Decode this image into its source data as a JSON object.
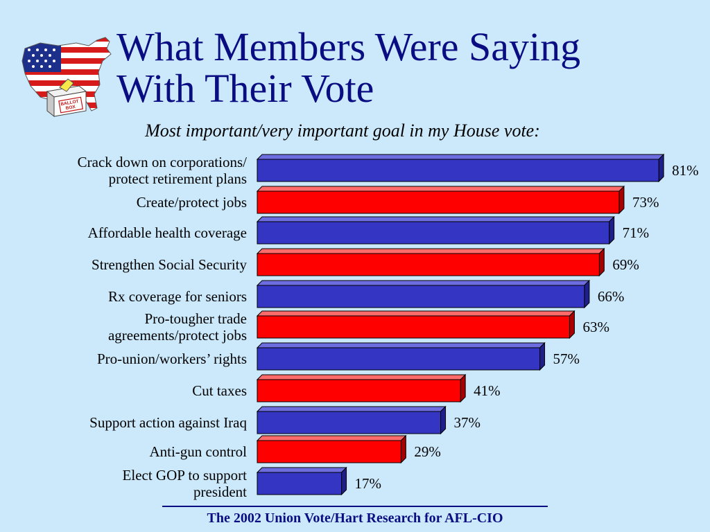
{
  "slide": {
    "title_lines": [
      "What Members Were Saying",
      "With Their Vote"
    ],
    "source": "The 2002 Union Vote/Hart Research for AFL-CIO",
    "logo_text": [
      "BALLOT",
      "BOX"
    ]
  },
  "colors": {
    "background": "#cce9fb",
    "title": "#0a0d82",
    "blue_bar": "#3535c4",
    "red_bar": "#ff0000"
  },
  "chart_data": {
    "type": "bar",
    "orientation": "horizontal",
    "title": "Most important/very important goal in my House vote:",
    "xlim": [
      0,
      81
    ],
    "grid": false,
    "legend": "none",
    "categories": [
      [
        "Crack down on corporations/",
        "protect retirement plans"
      ],
      [
        "Create/protect jobs"
      ],
      [
        "Affordable health coverage"
      ],
      [
        "Strengthen Social Security"
      ],
      [
        "Rx coverage for seniors"
      ],
      [
        "Pro-tougher trade",
        "agreements/protect jobs"
      ],
      [
        "Pro-union/workers’ rights"
      ],
      [
        "Cut taxes"
      ],
      [
        "Support action against Iraq"
      ],
      [
        "Anti-gun control"
      ],
      [
        "Elect GOP to support",
        "president"
      ]
    ],
    "values": [
      81,
      73,
      71,
      69,
      66,
      63,
      57,
      41,
      37,
      29,
      17
    ],
    "value_labels": [
      "81%",
      "73%",
      "71%",
      "69%",
      "66%",
      "63%",
      "57%",
      "41%",
      "37%",
      "29%",
      "17%"
    ],
    "bar_colors": [
      "blue",
      "red",
      "blue",
      "red",
      "blue",
      "red",
      "blue",
      "red",
      "blue",
      "red",
      "blue"
    ]
  }
}
